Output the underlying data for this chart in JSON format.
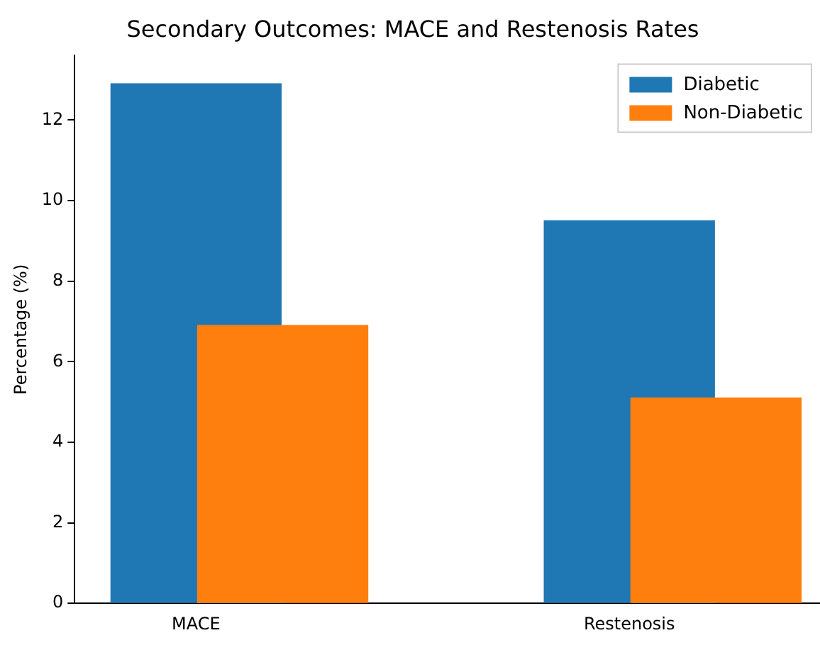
{
  "chart_data": {
    "type": "bar",
    "title": "Secondary Outcomes: MACE and Restenosis Rates",
    "ylabel": "Percentage (%)",
    "categories": [
      "MACE",
      "Restenosis"
    ],
    "series": [
      {
        "name": "Diabetic",
        "color": "#1f77b4",
        "values": [
          12.9,
          9.5
        ]
      },
      {
        "name": "Non-Diabetic",
        "color": "#ff7f0e",
        "values": [
          6.9,
          5.1
        ]
      }
    ],
    "ylim": [
      0,
      13.6
    ],
    "yticks": [
      0,
      2,
      4,
      6,
      8,
      10,
      12
    ],
    "grid": false,
    "legend": "top right"
  }
}
